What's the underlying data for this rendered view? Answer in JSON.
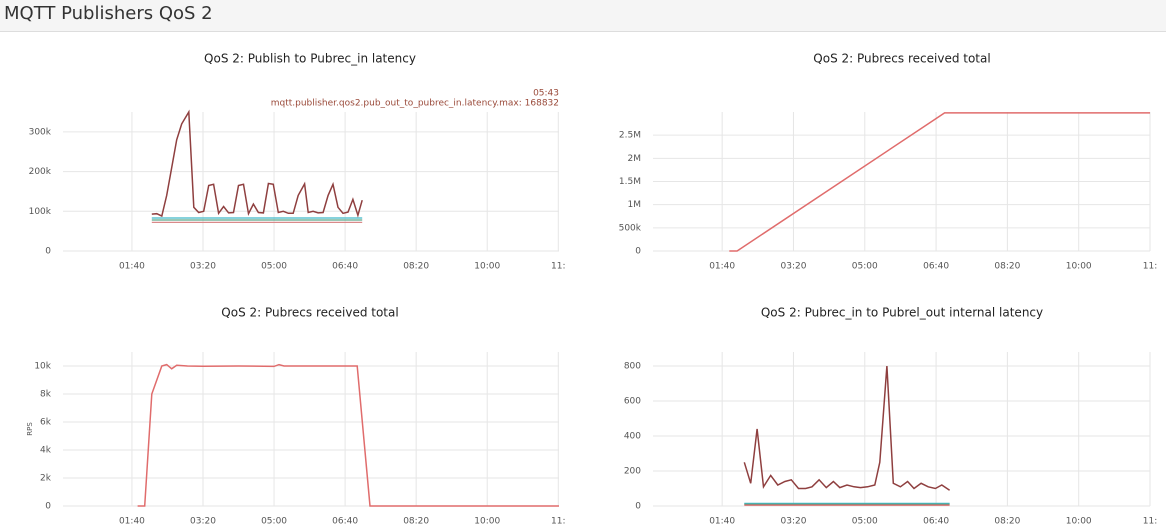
{
  "header": {
    "title": "MQTT Publishers QoS 2"
  },
  "chart_data": [
    {
      "type": "line",
      "title": "QoS 2: Publish to Pubrec_in latency",
      "annotations": [
        "05:43",
        "mqtt.publisher.qos2.pub_out_to_pubrec_in.latency.max: 168832"
      ],
      "xlim": [
        3,
        701
      ],
      "xticks": [
        {
          "value": 100,
          "label": "01:40"
        },
        {
          "value": 200,
          "label": "03:20"
        },
        {
          "value": 300,
          "label": "05:00"
        },
        {
          "value": 400,
          "label": "06:40"
        },
        {
          "value": 500,
          "label": "08:20"
        },
        {
          "value": 600,
          "label": "10:00"
        },
        {
          "value": 700,
          "label": "11:"
        }
      ],
      "ylim": [
        0,
        350000
      ],
      "yticks": [
        0,
        {
          "value": 100000,
          "label": "100k"
        },
        {
          "value": 200000,
          "label": "200k"
        },
        {
          "value": 300000,
          "label": "300k"
        }
      ],
      "series": [
        {
          "color": "#8f3f3f",
          "x": [
            128,
            135,
            142,
            149,
            156,
            163,
            170,
            180,
            187,
            194,
            201,
            208,
            215,
            222,
            229,
            236,
            243,
            250,
            257,
            264,
            271,
            278,
            285,
            292,
            299,
            306,
            313,
            320,
            327,
            334,
            343,
            348,
            355,
            362,
            369,
            376,
            383,
            390,
            397,
            404,
            411,
            418,
            424
          ],
          "values": [
            93000,
            94000,
            88000,
            140000,
            210000,
            280000,
            320000,
            350000,
            110000,
            97000,
            100000,
            165000,
            168000,
            95000,
            112000,
            96000,
            97000,
            165000,
            168000,
            94000,
            118000,
            97000,
            96000,
            170000,
            168000,
            97000,
            100000,
            95000,
            95000,
            140000,
            168832,
            97000,
            100000,
            96000,
            97000,
            140000,
            168000,
            110000,
            95000,
            98000,
            130000,
            90000,
            128000
          ]
        },
        {
          "color": "#3fb8c8",
          "x": [
            128,
            424
          ],
          "values": [
            83000,
            83000
          ]
        },
        {
          "color": "#5aa88a",
          "x": [
            128,
            424
          ],
          "values": [
            78000,
            78000
          ]
        },
        {
          "color": "#d98a8a",
          "x": [
            128,
            424
          ],
          "values": [
            72000,
            72000
          ]
        }
      ]
    },
    {
      "type": "line",
      "title": "QoS 2: Pubrecs received total",
      "xlim": [
        3,
        700
      ],
      "xticks": [
        {
          "value": 100,
          "label": "01:40"
        },
        {
          "value": 200,
          "label": "03:20"
        },
        {
          "value": 300,
          "label": "05:00"
        },
        {
          "value": 400,
          "label": "06:40"
        },
        {
          "value": 500,
          "label": "08:20"
        },
        {
          "value": 600,
          "label": "10:00"
        },
        {
          "value": 700,
          "label": "11:"
        }
      ],
      "ylim": [
        0,
        3000000
      ],
      "yticks": [
        0,
        {
          "value": 500000,
          "label": "500k"
        },
        {
          "value": 1000000,
          "label": "1M"
        },
        {
          "value": 1500000,
          "label": "1.5M"
        },
        {
          "value": 2000000,
          "label": "2M"
        },
        {
          "value": 2500000,
          "label": "2.5M"
        }
      ],
      "series": [
        {
          "color": "#e06c6c",
          "x": [
            110,
            121,
            412,
            700
          ],
          "values": [
            0,
            0,
            2980000,
            2980000
          ]
        }
      ]
    },
    {
      "type": "line",
      "title": "QoS 2: Pubrecs received total",
      "ylabel": "RPS",
      "xlim": [
        3,
        701
      ],
      "xticks": [
        {
          "value": 100,
          "label": "01:40"
        },
        {
          "value": 200,
          "label": "03:20"
        },
        {
          "value": 300,
          "label": "05:00"
        },
        {
          "value": 400,
          "label": "06:40"
        },
        {
          "value": 500,
          "label": "08:20"
        },
        {
          "value": 600,
          "label": "10:00"
        },
        {
          "value": 700,
          "label": "11:"
        }
      ],
      "ylim": [
        0,
        11000
      ],
      "yticks": [
        0,
        {
          "value": 2000,
          "label": "2k"
        },
        {
          "value": 4000,
          "label": "4k"
        },
        {
          "value": 6000,
          "label": "6k"
        },
        {
          "value": 8000,
          "label": "8k"
        },
        {
          "value": 10000,
          "label": "10k"
        }
      ],
      "series": [
        {
          "color": "#e06c6c",
          "x": [
            108,
            118,
            128,
            142,
            149,
            156,
            163,
            178,
            200,
            250,
            300,
            307,
            314,
            330,
            417,
            435,
            701
          ],
          "values": [
            0,
            0,
            8000,
            10000,
            10100,
            9800,
            10050,
            10000,
            9980,
            10000,
            9970,
            10100,
            10000,
            10000,
            10000,
            0,
            0
          ]
        }
      ]
    },
    {
      "type": "line",
      "title": "QoS 2: Pubrec_in to Pubrel_out internal latency",
      "xlim": [
        3,
        700
      ],
      "xticks": [
        {
          "value": 100,
          "label": "01:40"
        },
        {
          "value": 200,
          "label": "03:20"
        },
        {
          "value": 300,
          "label": "05:00"
        },
        {
          "value": 400,
          "label": "06:40"
        },
        {
          "value": 500,
          "label": "08:20"
        },
        {
          "value": 600,
          "label": "10:00"
        },
        {
          "value": 700,
          "label": "11:"
        }
      ],
      "ylim": [
        0,
        880
      ],
      "yticks": [
        0,
        200,
        400,
        600,
        800
      ],
      "series": [
        {
          "color": "#8f3f3f",
          "x": [
            131,
            140,
            149,
            158,
            168,
            178,
            188,
            197,
            207,
            217,
            226,
            236,
            246,
            256,
            265,
            275,
            285,
            294,
            304,
            314,
            321,
            331,
            340,
            350,
            360,
            369,
            379,
            389,
            399,
            408,
            419
          ],
          "values": [
            250,
            130,
            440,
            110,
            175,
            120,
            140,
            150,
            100,
            100,
            110,
            150,
            105,
            140,
            105,
            120,
            110,
            105,
            110,
            120,
            250,
            800,
            130,
            110,
            140,
            100,
            130,
            110,
            100,
            120,
            90
          ]
        },
        {
          "color": "#3fb8c8",
          "x": [
            131,
            419
          ],
          "values": [
            15,
            15
          ]
        },
        {
          "color": "#5aa88a",
          "x": [
            131,
            419
          ],
          "values": [
            10,
            10
          ]
        },
        {
          "color": "#d96060",
          "x": [
            131,
            419
          ],
          "values": [
            5,
            5
          ]
        }
      ]
    }
  ]
}
